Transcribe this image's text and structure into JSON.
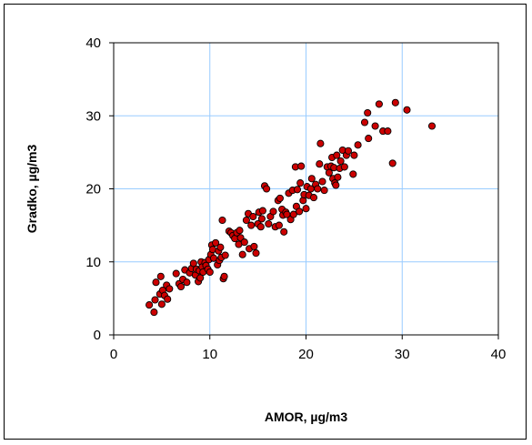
{
  "chart_data": {
    "type": "scatter",
    "title": "",
    "xlabel": "AMOR, µg/m3",
    "ylabel": "Gradko, µg/m3",
    "xlim": [
      0,
      40
    ],
    "ylim": [
      0,
      40
    ],
    "xticks": [
      "0",
      "10",
      "20",
      "30",
      "40"
    ],
    "yticks": [
      "0",
      "10",
      "20",
      "30",
      "40"
    ],
    "grid": true,
    "legend": "none",
    "colors": {
      "grid": "#99ccff",
      "marker_fill": "#cc0000",
      "marker_edge": "#000000",
      "axis": "#000000"
    },
    "series": [
      {
        "points": [
          [
            3.7,
            4.1
          ],
          [
            4.2,
            3.1
          ],
          [
            4.3,
            4.8
          ],
          [
            4.4,
            7.2
          ],
          [
            4.8,
            5.6
          ],
          [
            4.9,
            8.0
          ],
          [
            5.0,
            4.2
          ],
          [
            5.1,
            6.1
          ],
          [
            5.3,
            5.4
          ],
          [
            5.5,
            6.8
          ],
          [
            5.6,
            4.9
          ],
          [
            5.8,
            6.3
          ],
          [
            6.5,
            8.4
          ],
          [
            6.8,
            7.0
          ],
          [
            7.0,
            6.6
          ],
          [
            7.2,
            7.6
          ],
          [
            7.4,
            8.9
          ],
          [
            7.6,
            7.2
          ],
          [
            7.9,
            8.5
          ],
          [
            8.1,
            9.1
          ],
          [
            8.3,
            9.8
          ],
          [
            8.5,
            8.2
          ],
          [
            8.6,
            9.0
          ],
          [
            8.8,
            7.3
          ],
          [
            8.9,
            8.8
          ],
          [
            9.0,
            7.8
          ],
          [
            9.1,
            10.0
          ],
          [
            9.2,
            9.3
          ],
          [
            9.3,
            8.6
          ],
          [
            9.5,
            9.9
          ],
          [
            9.6,
            9.5
          ],
          [
            9.8,
            9.0
          ],
          [
            9.9,
            10.3
          ],
          [
            10.0,
            8.6
          ],
          [
            10.1,
            11.0
          ],
          [
            10.2,
            12.3
          ],
          [
            10.3,
            11.7
          ],
          [
            10.4,
            10.5
          ],
          [
            10.6,
            12.6
          ],
          [
            10.8,
            9.6
          ],
          [
            10.9,
            11.5
          ],
          [
            11.0,
            10.2
          ],
          [
            11.1,
            12.0
          ],
          [
            11.2,
            10.6
          ],
          [
            11.3,
            15.7
          ],
          [
            11.4,
            7.7
          ],
          [
            11.5,
            8.0
          ],
          [
            11.6,
            10.9
          ],
          [
            12.0,
            14.2
          ],
          [
            12.2,
            14.0
          ],
          [
            12.4,
            13.6
          ],
          [
            12.6,
            13.2
          ],
          [
            12.8,
            14.0
          ],
          [
            13.0,
            12.4
          ],
          [
            13.1,
            14.3
          ],
          [
            13.2,
            13.3
          ],
          [
            13.4,
            11.0
          ],
          [
            13.6,
            12.7
          ],
          [
            13.8,
            15.7
          ],
          [
            14.0,
            16.6
          ],
          [
            14.1,
            11.8
          ],
          [
            14.3,
            15.0
          ],
          [
            14.5,
            16.2
          ],
          [
            14.6,
            12.1
          ],
          [
            14.8,
            11.2
          ],
          [
            15.0,
            15.2
          ],
          [
            15.1,
            16.8
          ],
          [
            15.3,
            14.8
          ],
          [
            15.4,
            15.9
          ],
          [
            15.5,
            17.0
          ],
          [
            15.7,
            20.4
          ],
          [
            15.9,
            20.0
          ],
          [
            16.1,
            15.2
          ],
          [
            16.3,
            16.2
          ],
          [
            16.6,
            16.9
          ],
          [
            16.8,
            14.8
          ],
          [
            17.1,
            18.4
          ],
          [
            17.2,
            15.0
          ],
          [
            17.3,
            18.7
          ],
          [
            17.5,
            17.2
          ],
          [
            17.6,
            16.4
          ],
          [
            17.7,
            14.1
          ],
          [
            17.9,
            16.8
          ],
          [
            18.0,
            16.5
          ],
          [
            18.2,
            19.4
          ],
          [
            18.4,
            15.8
          ],
          [
            18.6,
            19.8
          ],
          [
            18.7,
            16.5
          ],
          [
            18.9,
            23.0
          ],
          [
            19.0,
            17.6
          ],
          [
            19.1,
            19.9
          ],
          [
            19.3,
            16.9
          ],
          [
            19.4,
            20.8
          ],
          [
            19.5,
            23.1
          ],
          [
            19.7,
            18.4
          ],
          [
            19.8,
            19.2
          ],
          [
            20.0,
            17.3
          ],
          [
            20.1,
            20.3
          ],
          [
            20.3,
            19.1
          ],
          [
            20.5,
            20.0
          ],
          [
            20.6,
            21.4
          ],
          [
            20.8,
            18.8
          ],
          [
            21.0,
            20.6
          ],
          [
            21.2,
            20.0
          ],
          [
            21.4,
            23.4
          ],
          [
            21.5,
            26.2
          ],
          [
            21.7,
            21.0
          ],
          [
            21.9,
            19.8
          ],
          [
            22.2,
            23.0
          ],
          [
            22.4,
            22.2
          ],
          [
            22.6,
            23.1
          ],
          [
            22.7,
            24.3
          ],
          [
            22.8,
            21.4
          ],
          [
            22.9,
            22.9
          ],
          [
            23.0,
            20.8
          ],
          [
            23.1,
            20.5
          ],
          [
            23.2,
            24.6
          ],
          [
            23.3,
            21.6
          ],
          [
            23.5,
            22.8
          ],
          [
            23.6,
            23.8
          ],
          [
            23.8,
            25.3
          ],
          [
            24.0,
            23.0
          ],
          [
            24.2,
            24.6
          ],
          [
            24.4,
            25.2
          ],
          [
            24.9,
            22.0
          ],
          [
            25.0,
            24.6
          ],
          [
            25.4,
            26.0
          ],
          [
            26.1,
            29.1
          ],
          [
            26.4,
            30.4
          ],
          [
            26.5,
            26.9
          ],
          [
            27.2,
            28.6
          ],
          [
            27.6,
            31.6
          ],
          [
            28.0,
            27.9
          ],
          [
            28.5,
            27.9
          ],
          [
            29.0,
            23.5
          ],
          [
            29.3,
            31.8
          ],
          [
            30.5,
            30.8
          ],
          [
            33.1,
            28.6
          ]
        ]
      }
    ]
  }
}
